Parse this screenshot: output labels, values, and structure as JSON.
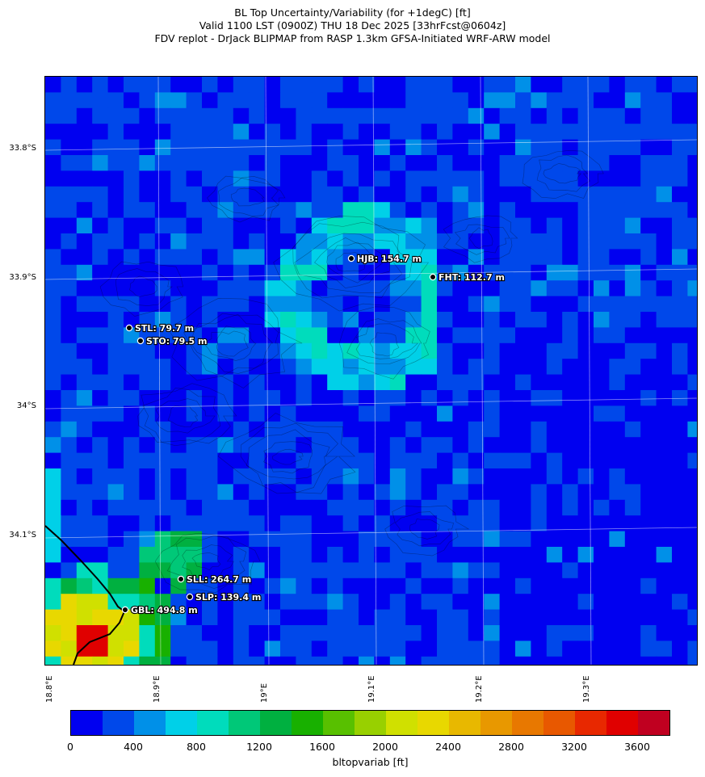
{
  "title_lines": [
    "BL Top Uncertainty/Variability (for +1degC) [ft]",
    "Valid 1100 LST (0900Z) THU 18 Dec 2025 [33hrFcst@0604z]",
    "FDV replot - DrJack BLIPMAP from RASP 1.3km GFSA-Initiated WRF-ARW model"
  ],
  "lat_labels": [
    "33.8°S",
    "33.9°S",
    "34°S",
    "34.1°S"
  ],
  "lon_labels": [
    "18.8°E",
    "18.9°E",
    "19°E",
    "19.1°E",
    "19.2°E",
    "19.3°E"
  ],
  "colorbar": {
    "label": "bltopvariab [ft]",
    "ticks": [
      "0",
      "400",
      "800",
      "1200",
      "1600",
      "2000",
      "2400",
      "2800",
      "3200",
      "3600"
    ],
    "colors": [
      "#0000f0",
      "#0048ea",
      "#0090e8",
      "#00d0e8",
      "#00dcbc",
      "#00c878",
      "#00b040",
      "#18b000",
      "#58c000",
      "#98d000",
      "#d0e000",
      "#e8d800",
      "#e8b800",
      "#e89800",
      "#e87800",
      "#e85800",
      "#e82800",
      "#e00000",
      "#c00020"
    ]
  },
  "stations": [
    {
      "id": "HJB",
      "label": "HJB: 154.7 m"
    },
    {
      "id": "FHT",
      "label": "FHT: 112.7 m"
    },
    {
      "id": "STL",
      "label": "STL: 79.7 m"
    },
    {
      "id": "STO",
      "label": "STO: 79.5 m"
    },
    {
      "id": "SLL",
      "label": "SLL: 264.7 m"
    },
    {
      "id": "SLP",
      "label": "SLP: 139.4 m"
    },
    {
      "id": "GBL",
      "label": "GBL: 494.8 m"
    }
  ]
}
